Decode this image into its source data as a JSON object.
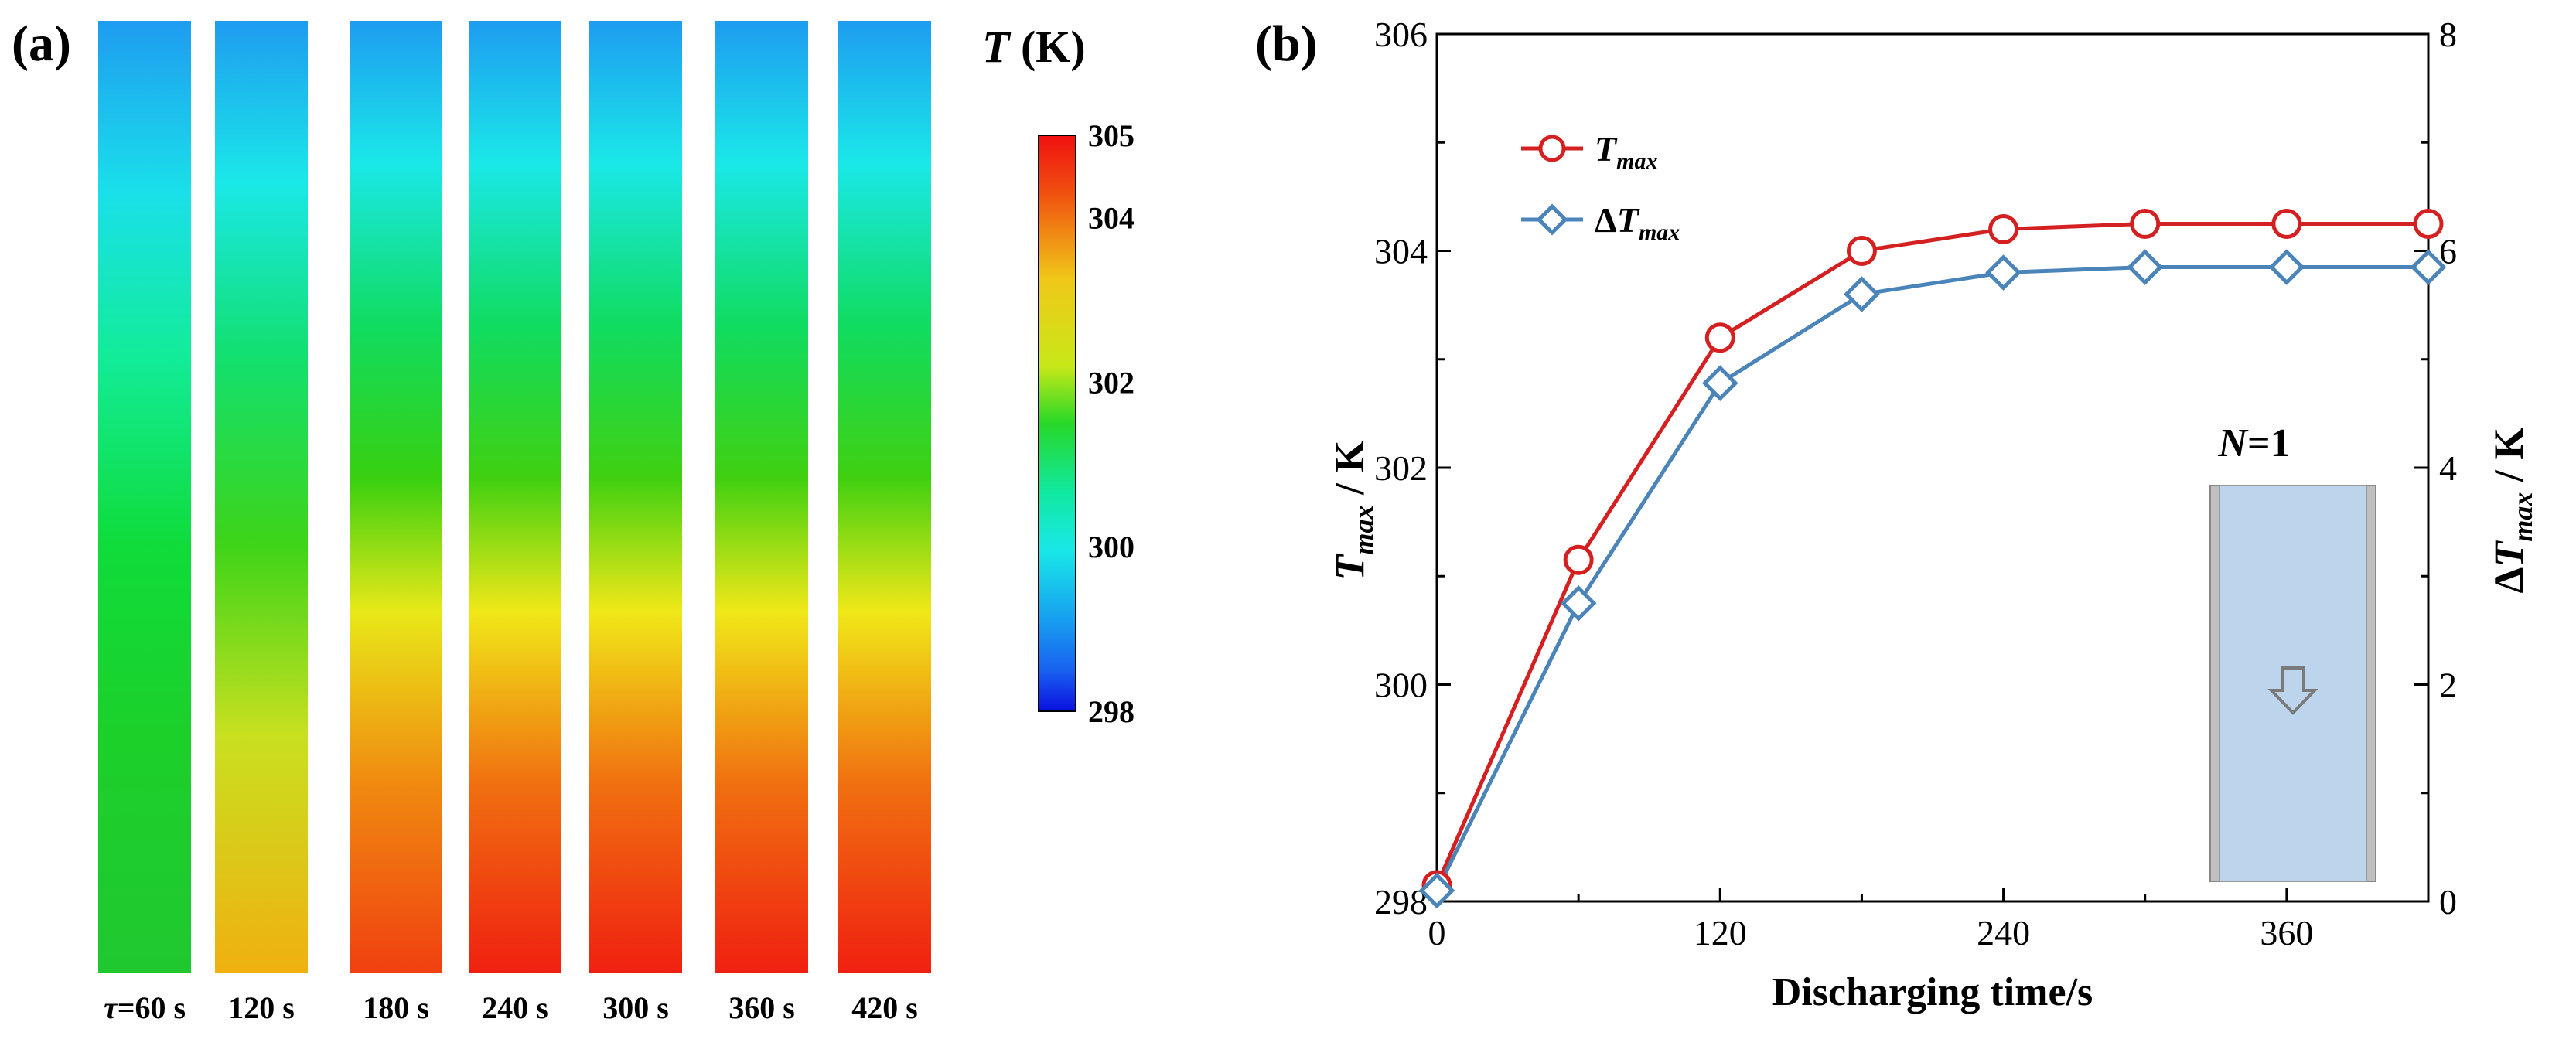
{
  "panel_a": {
    "label": "(a)",
    "colorbar": {
      "title_var": "T",
      "title_unit": " (K)",
      "ticks": [
        "305",
        "304",
        "302",
        "300",
        "298"
      ],
      "tick_values": [
        305,
        304,
        302,
        300,
        298
      ],
      "range": [
        298,
        305
      ]
    },
    "strips": [
      {
        "label": "τ=60 s",
        "top_color": "#1e9cf0",
        "stops": [
          [
            "0",
            "#1e9cf0"
          ],
          [
            "0.18",
            "#1ae0ea"
          ],
          [
            "0.35",
            "#12ec9a"
          ],
          [
            "0.55",
            "#0fdc3a"
          ],
          [
            "0.75",
            "#1cd02a"
          ],
          [
            "1",
            "#20c830"
          ]
        ]
      },
      {
        "label": "120 s",
        "top_color": "#1e9cf0",
        "stops": [
          [
            "0",
            "#1e9cf0"
          ],
          [
            "0.17",
            "#1ae8e8"
          ],
          [
            "0.35",
            "#12e070"
          ],
          [
            "0.55",
            "#3ed418"
          ],
          [
            "0.75",
            "#c8e020"
          ],
          [
            "1",
            "#f0b010"
          ]
        ]
      },
      {
        "label": "180 s",
        "top_color": "#1e9cf0",
        "stops": [
          [
            "0",
            "#1e9cf0"
          ],
          [
            "0.15",
            "#1ae8e8"
          ],
          [
            "0.32",
            "#10dc60"
          ],
          [
            "0.48",
            "#38d010"
          ],
          [
            "0.62",
            "#e8e818"
          ],
          [
            "0.8",
            "#f08a10"
          ],
          [
            "1",
            "#f04010"
          ]
        ]
      },
      {
        "label": "240 s",
        "top_color": "#1e9cf0",
        "stops": [
          [
            "0",
            "#1e9cf0"
          ],
          [
            "0.15",
            "#1ae8e8"
          ],
          [
            "0.32",
            "#10dc60"
          ],
          [
            "0.48",
            "#40d010"
          ],
          [
            "0.62",
            "#f0e818"
          ],
          [
            "0.8",
            "#f07010"
          ],
          [
            "1",
            "#f02010"
          ]
        ]
      },
      {
        "label": "300 s",
        "top_color": "#1e9cf0",
        "stops": [
          [
            "0",
            "#1e9cf0"
          ],
          [
            "0.15",
            "#1ae8e8"
          ],
          [
            "0.32",
            "#10dc60"
          ],
          [
            "0.48",
            "#40d010"
          ],
          [
            "0.62",
            "#f0e818"
          ],
          [
            "0.8",
            "#f07010"
          ],
          [
            "1",
            "#f02010"
          ]
        ]
      },
      {
        "label": "360 s",
        "top_color": "#1e9cf0",
        "stops": [
          [
            "0",
            "#1e9cf0"
          ],
          [
            "0.15",
            "#1ae8e8"
          ],
          [
            "0.32",
            "#10dc60"
          ],
          [
            "0.48",
            "#40d010"
          ],
          [
            "0.62",
            "#f0e818"
          ],
          [
            "0.8",
            "#f07010"
          ],
          [
            "1",
            "#f02010"
          ]
        ]
      },
      {
        "label": "420 s",
        "top_color": "#1e9cf0",
        "stops": [
          [
            "0",
            "#1e9cf0"
          ],
          [
            "0.15",
            "#1ae8e8"
          ],
          [
            "0.32",
            "#10dc60"
          ],
          [
            "0.48",
            "#40d010"
          ],
          [
            "0.62",
            "#f0e818"
          ],
          [
            "0.8",
            "#f07010"
          ],
          [
            "1",
            "#f02010"
          ]
        ]
      }
    ]
  },
  "panel_b": {
    "label": "(b)",
    "inset_label_var": "N",
    "inset_label_val": "=1",
    "colors": {
      "tmax": "#d42020",
      "dtmax": "#4a84b8"
    }
  },
  "chart_data": {
    "type": "line",
    "title": "",
    "xlabel": "Discharging time/s",
    "ylabel": "T_max / K",
    "y2label": "ΔT_max / K",
    "xlim": [
      0,
      420
    ],
    "ylim": [
      298,
      306
    ],
    "y2lim": [
      0,
      8
    ],
    "xticks": [
      "0",
      "120",
      "240",
      "360"
    ],
    "xtick_values": [
      0,
      120,
      240,
      360
    ],
    "yticks": [
      "298",
      "300",
      "302",
      "304",
      "306"
    ],
    "ytick_values": [
      298,
      300,
      302,
      304,
      306
    ],
    "y2ticks": [
      "0",
      "2",
      "4",
      "6",
      "8"
    ],
    "y2tick_values": [
      0,
      2,
      4,
      6,
      8
    ],
    "legend_position": "top-left",
    "grid": false,
    "x": [
      0,
      60,
      120,
      180,
      240,
      300,
      360,
      420
    ],
    "series": [
      {
        "name": "T_max",
        "axis": "left",
        "marker": "circle",
        "color": "#d42020",
        "values": [
          298.15,
          301.15,
          303.2,
          304.0,
          304.2,
          304.25,
          304.25,
          304.25
        ]
      },
      {
        "name": "ΔT_max",
        "axis": "right",
        "marker": "diamond",
        "color": "#4a84b8",
        "values": [
          0.1,
          2.75,
          4.78,
          5.6,
          5.8,
          5.85,
          5.85,
          5.85
        ]
      }
    ]
  }
}
